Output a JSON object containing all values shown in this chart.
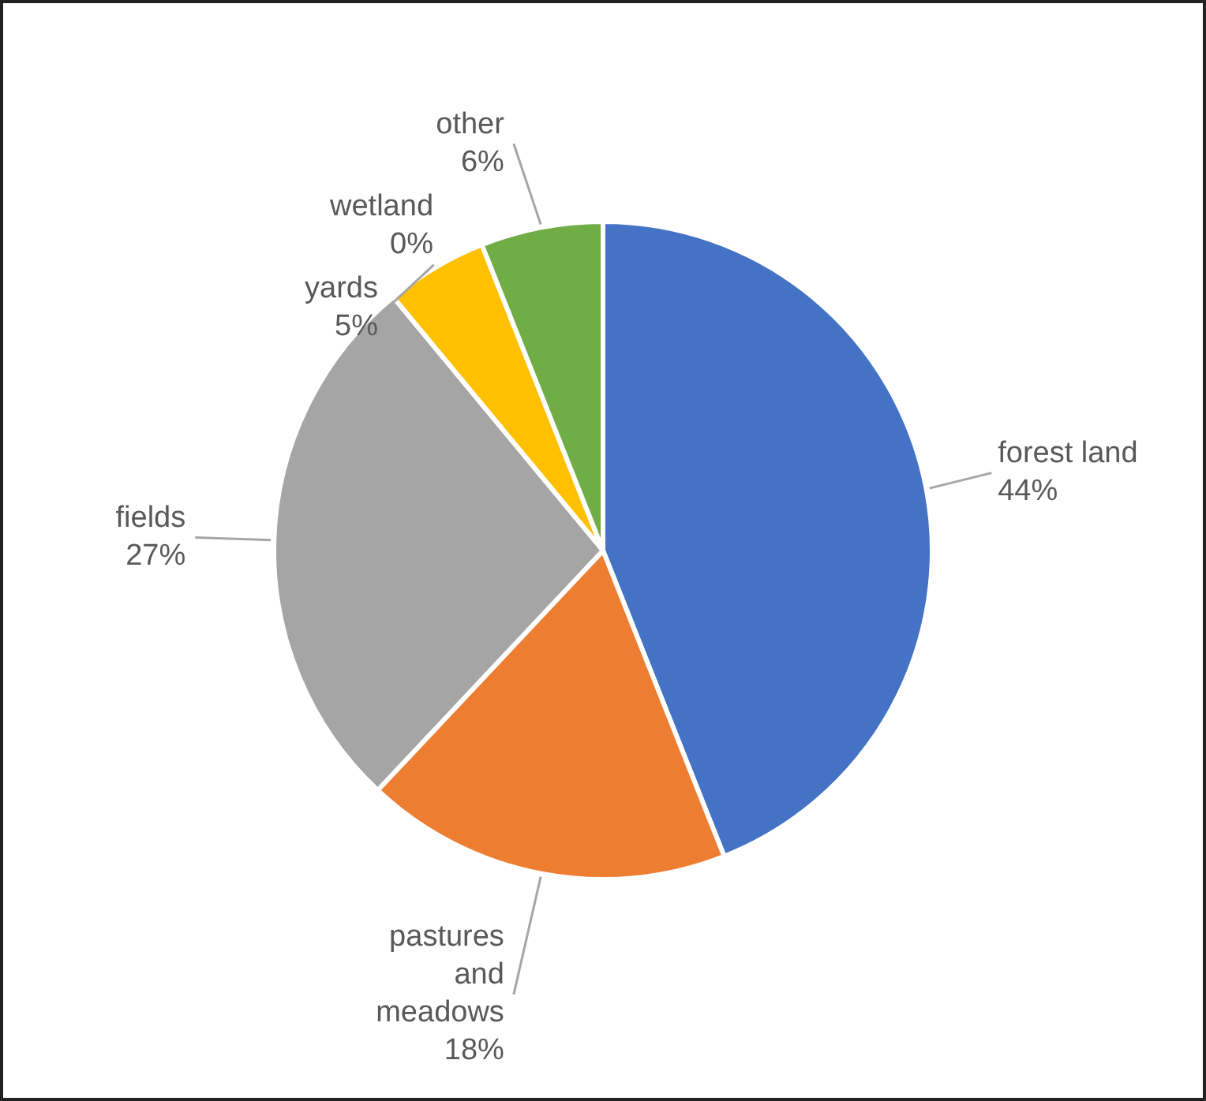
{
  "chart_data": {
    "type": "pie",
    "categories": [
      "forest land",
      "pastures and meadows",
      "fields",
      "yards",
      "wetland",
      "other"
    ],
    "values": [
      44,
      18,
      27,
      5,
      0,
      6
    ],
    "colors": [
      "#4472c4",
      "#ed7d31",
      "#a5a5a5",
      "#ffc000",
      "#5b9bd5",
      "#70ad47"
    ],
    "value_labels": [
      "44%",
      "18%",
      "27%",
      "5%",
      "0%",
      "6%"
    ]
  }
}
